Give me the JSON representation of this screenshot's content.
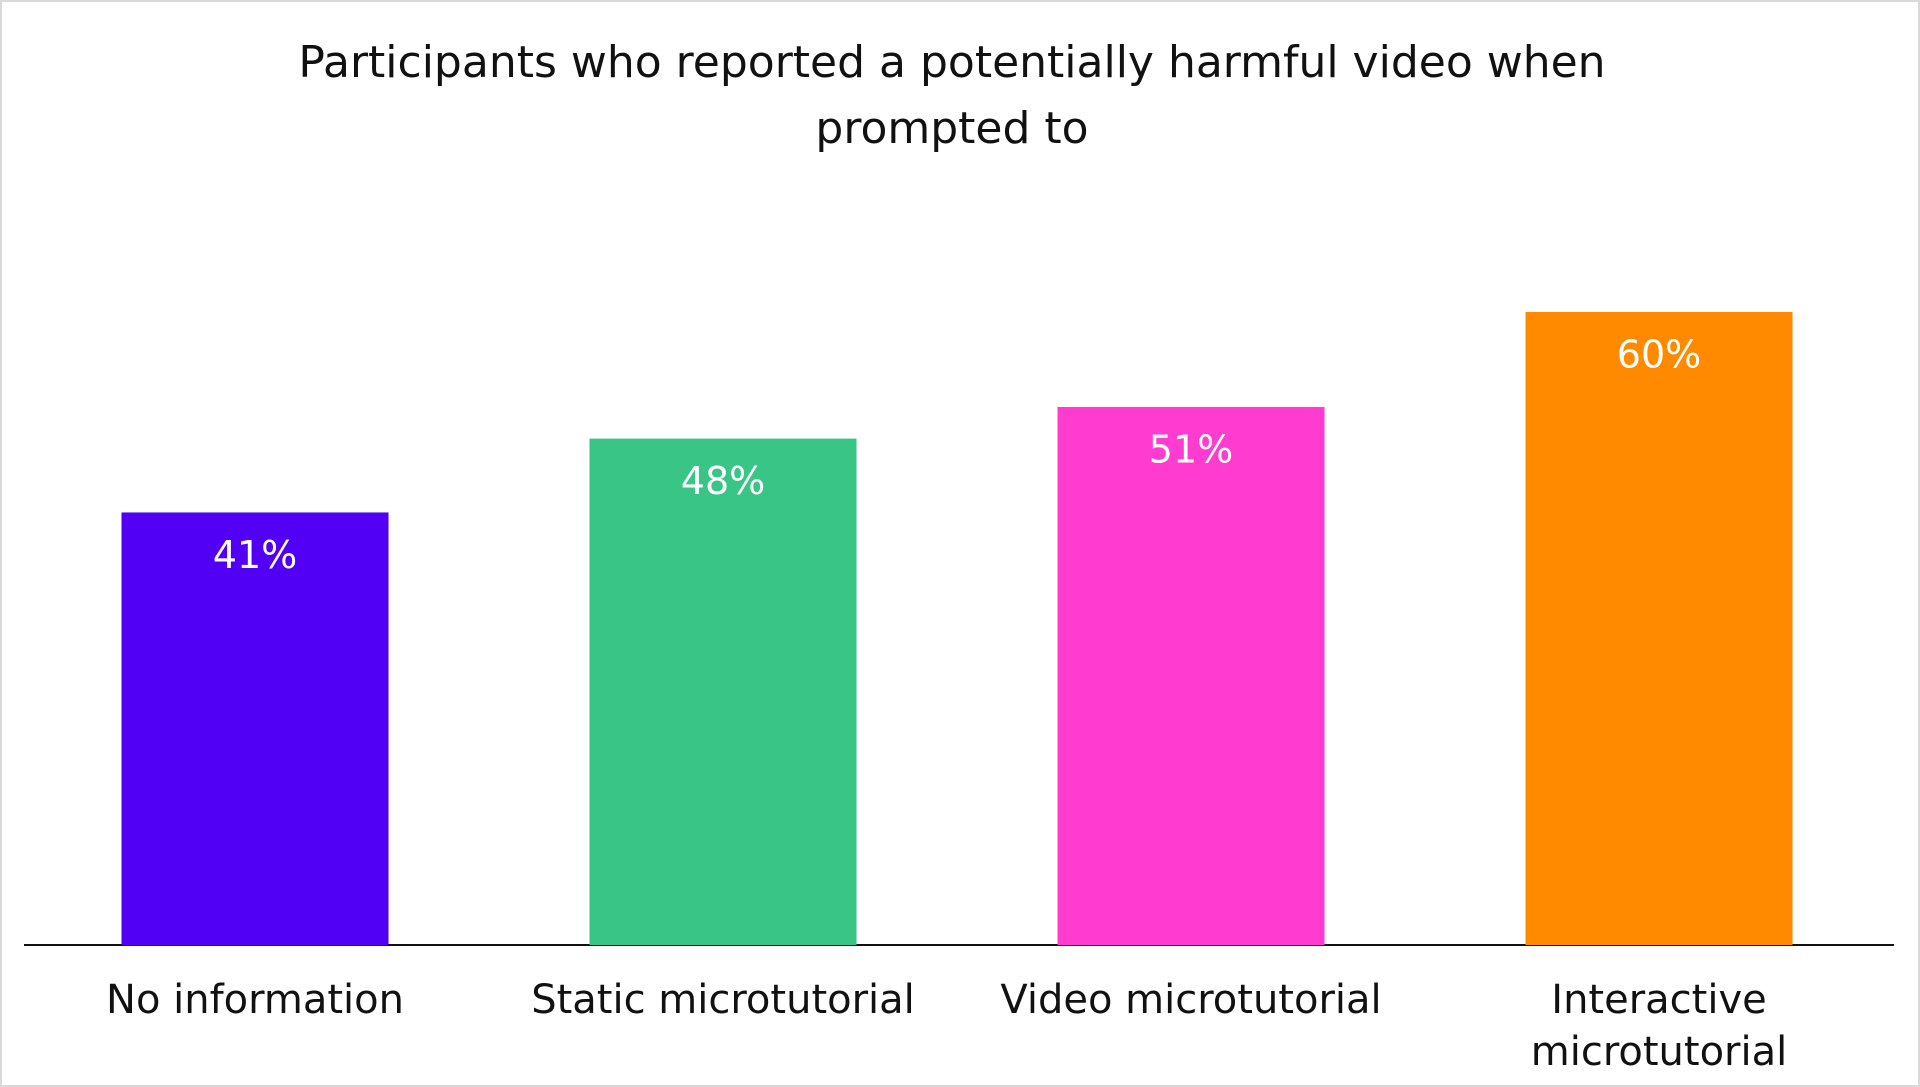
{
  "chart_data": {
    "type": "bar",
    "title": "Participants who reported a potentially harmful video when prompted to",
    "categories": [
      "No information",
      "Static microtutorial",
      "Video microtutorial",
      "Interactive microtutorial"
    ],
    "values": [
      41,
      48,
      51,
      60
    ],
    "value_labels": [
      "41%",
      "48%",
      "51%",
      "60%"
    ],
    "colors": [
      "#5200f5",
      "#38c585",
      "#ff3bd0",
      "#ff8a00"
    ]
  }
}
